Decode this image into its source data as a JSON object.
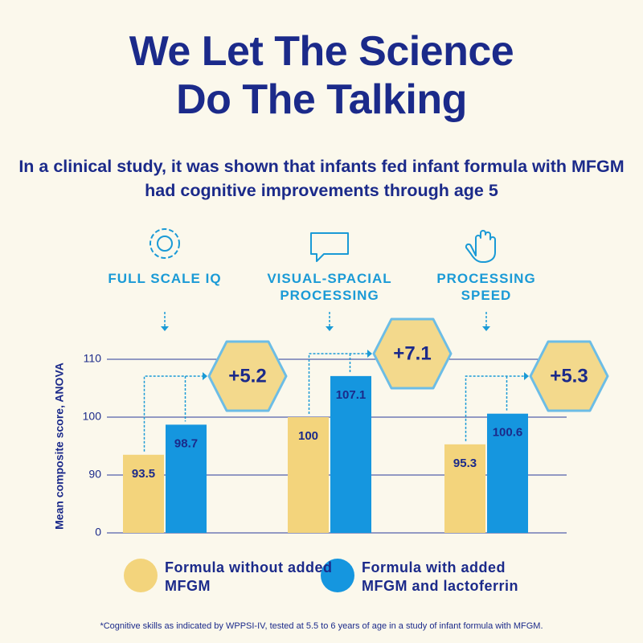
{
  "title": "We Let The Science Do The Talking",
  "subtitle": "In a clinical study, it was shown that infants fed infant formula with MFGM had cognitive improvements through age 5",
  "footnote": "*Cognitive skills as indicated by WPPSI-IV, tested at 5.5 to 6 years of age in a study of infant formula with MFGM.",
  "chart_data": {
    "type": "bar",
    "y_label": "Mean composite score, ANOVA",
    "categories": [
      "FULL SCALE IQ",
      "VISUAL-SPACIAL PROCESSING",
      "PROCESSING SPEED"
    ],
    "series": [
      {
        "name": "Formula without added MFGM",
        "color": "#f3d47c",
        "values": [
          93.5,
          100,
          95.3
        ]
      },
      {
        "name": "Formula with added MFGM and lactoferrin",
        "color": "#1596df",
        "values": [
          98.7,
          107.1,
          100.6
        ]
      }
    ],
    "annotations": [
      "+5.2",
      "+7.1",
      "+5.3"
    ],
    "ylim": [
      0,
      110
    ],
    "yticks": [
      0,
      90,
      100,
      110
    ],
    "grid": true
  }
}
